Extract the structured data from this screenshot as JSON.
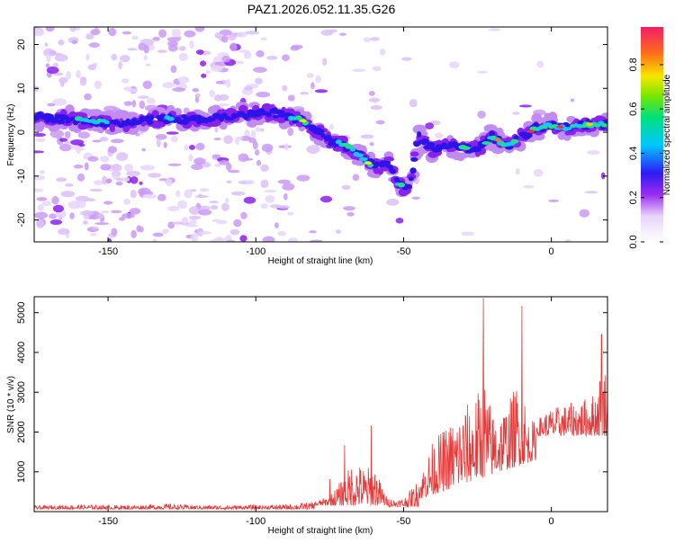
{
  "title": "PAZ1.2026.052.11.35.G26",
  "chart_data": [
    {
      "type": "heatmap",
      "title": "PAZ1.2026.052.11.35.G26",
      "xlabel": "Height of straight line (km)",
      "ylabel": "Frequency (Hz)",
      "xlim": [
        -175,
        19
      ],
      "ylim": [
        -25,
        24
      ],
      "xticks": [
        -150,
        -100,
        -50,
        0
      ],
      "yticks": [
        -20,
        -10,
        0,
        10,
        20
      ],
      "ridge": {
        "x": [
          -175,
          -165,
          -155,
          -145,
          -135,
          -125,
          -115,
          -105,
          -95,
          -85,
          -80,
          -75,
          -70,
          -65,
          -62,
          -58,
          -55,
          -52,
          -48,
          -45,
          -40,
          -35,
          -30,
          -25,
          -20,
          -15,
          -10,
          -5,
          0,
          5,
          10,
          15,
          19
        ],
        "y": [
          3.5,
          3,
          2.5,
          2,
          3,
          3,
          3,
          4,
          4.5,
          3,
          1,
          -2,
          -3,
          -5,
          -7,
          -8,
          -7,
          -12,
          -13,
          -1,
          -4,
          -3,
          -3.5,
          -4,
          -1,
          -3,
          -1,
          1,
          1.5,
          1,
          1.5,
          2,
          1.5
        ]
      },
      "colorbar": {
        "label": "Normalized spectral amplitude",
        "ticks": [
          0.0,
          0.2,
          0.4,
          0.6,
          0.8
        ],
        "range": [
          0,
          0.97
        ]
      }
    },
    {
      "type": "line",
      "xlabel": "Height of straight line (km)",
      "ylabel": "SNR (10 * v/v)",
      "xlim": [
        -175,
        19
      ],
      "ylim": [
        0,
        5400
      ],
      "xticks": [
        -150,
        -100,
        -50,
        0
      ],
      "yticks": [
        1000,
        2000,
        3000,
        4000,
        5000
      ],
      "series": [
        {
          "name": "SNR",
          "color": "#e53a3a",
          "envelope_x": [
            -175,
            -160,
            -150,
            -140,
            -130,
            -120,
            -110,
            -100,
            -90,
            -80,
            -75,
            -70,
            -67,
            -63,
            -60,
            -56,
            -53,
            -50,
            -45,
            -40,
            -35,
            -30,
            -25,
            -23,
            -20,
            -15,
            -12,
            -10,
            -8,
            -5,
            -2,
            0,
            5,
            10,
            15,
            17,
            19
          ],
          "envelope_y": [
            150,
            180,
            160,
            170,
            200,
            160,
            160,
            170,
            180,
            250,
            400,
            900,
            1300,
            1100,
            1200,
            400,
            300,
            350,
            800,
            1800,
            2200,
            2600,
            3000,
            3500,
            2500,
            2700,
            3200,
            3500,
            2300,
            2300,
            2500,
            2600,
            2700,
            2800,
            3000,
            3700,
            3600
          ],
          "peaks": [
            {
              "x": -75,
              "y": 800
            },
            {
              "x": -70,
              "y": 1650
            },
            {
              "x": -61,
              "y": 2150
            },
            {
              "x": -23,
              "y": 5350
            },
            {
              "x": -10,
              "y": 5150
            },
            {
              "x": 17,
              "y": 4450
            }
          ]
        }
      ]
    }
  ]
}
